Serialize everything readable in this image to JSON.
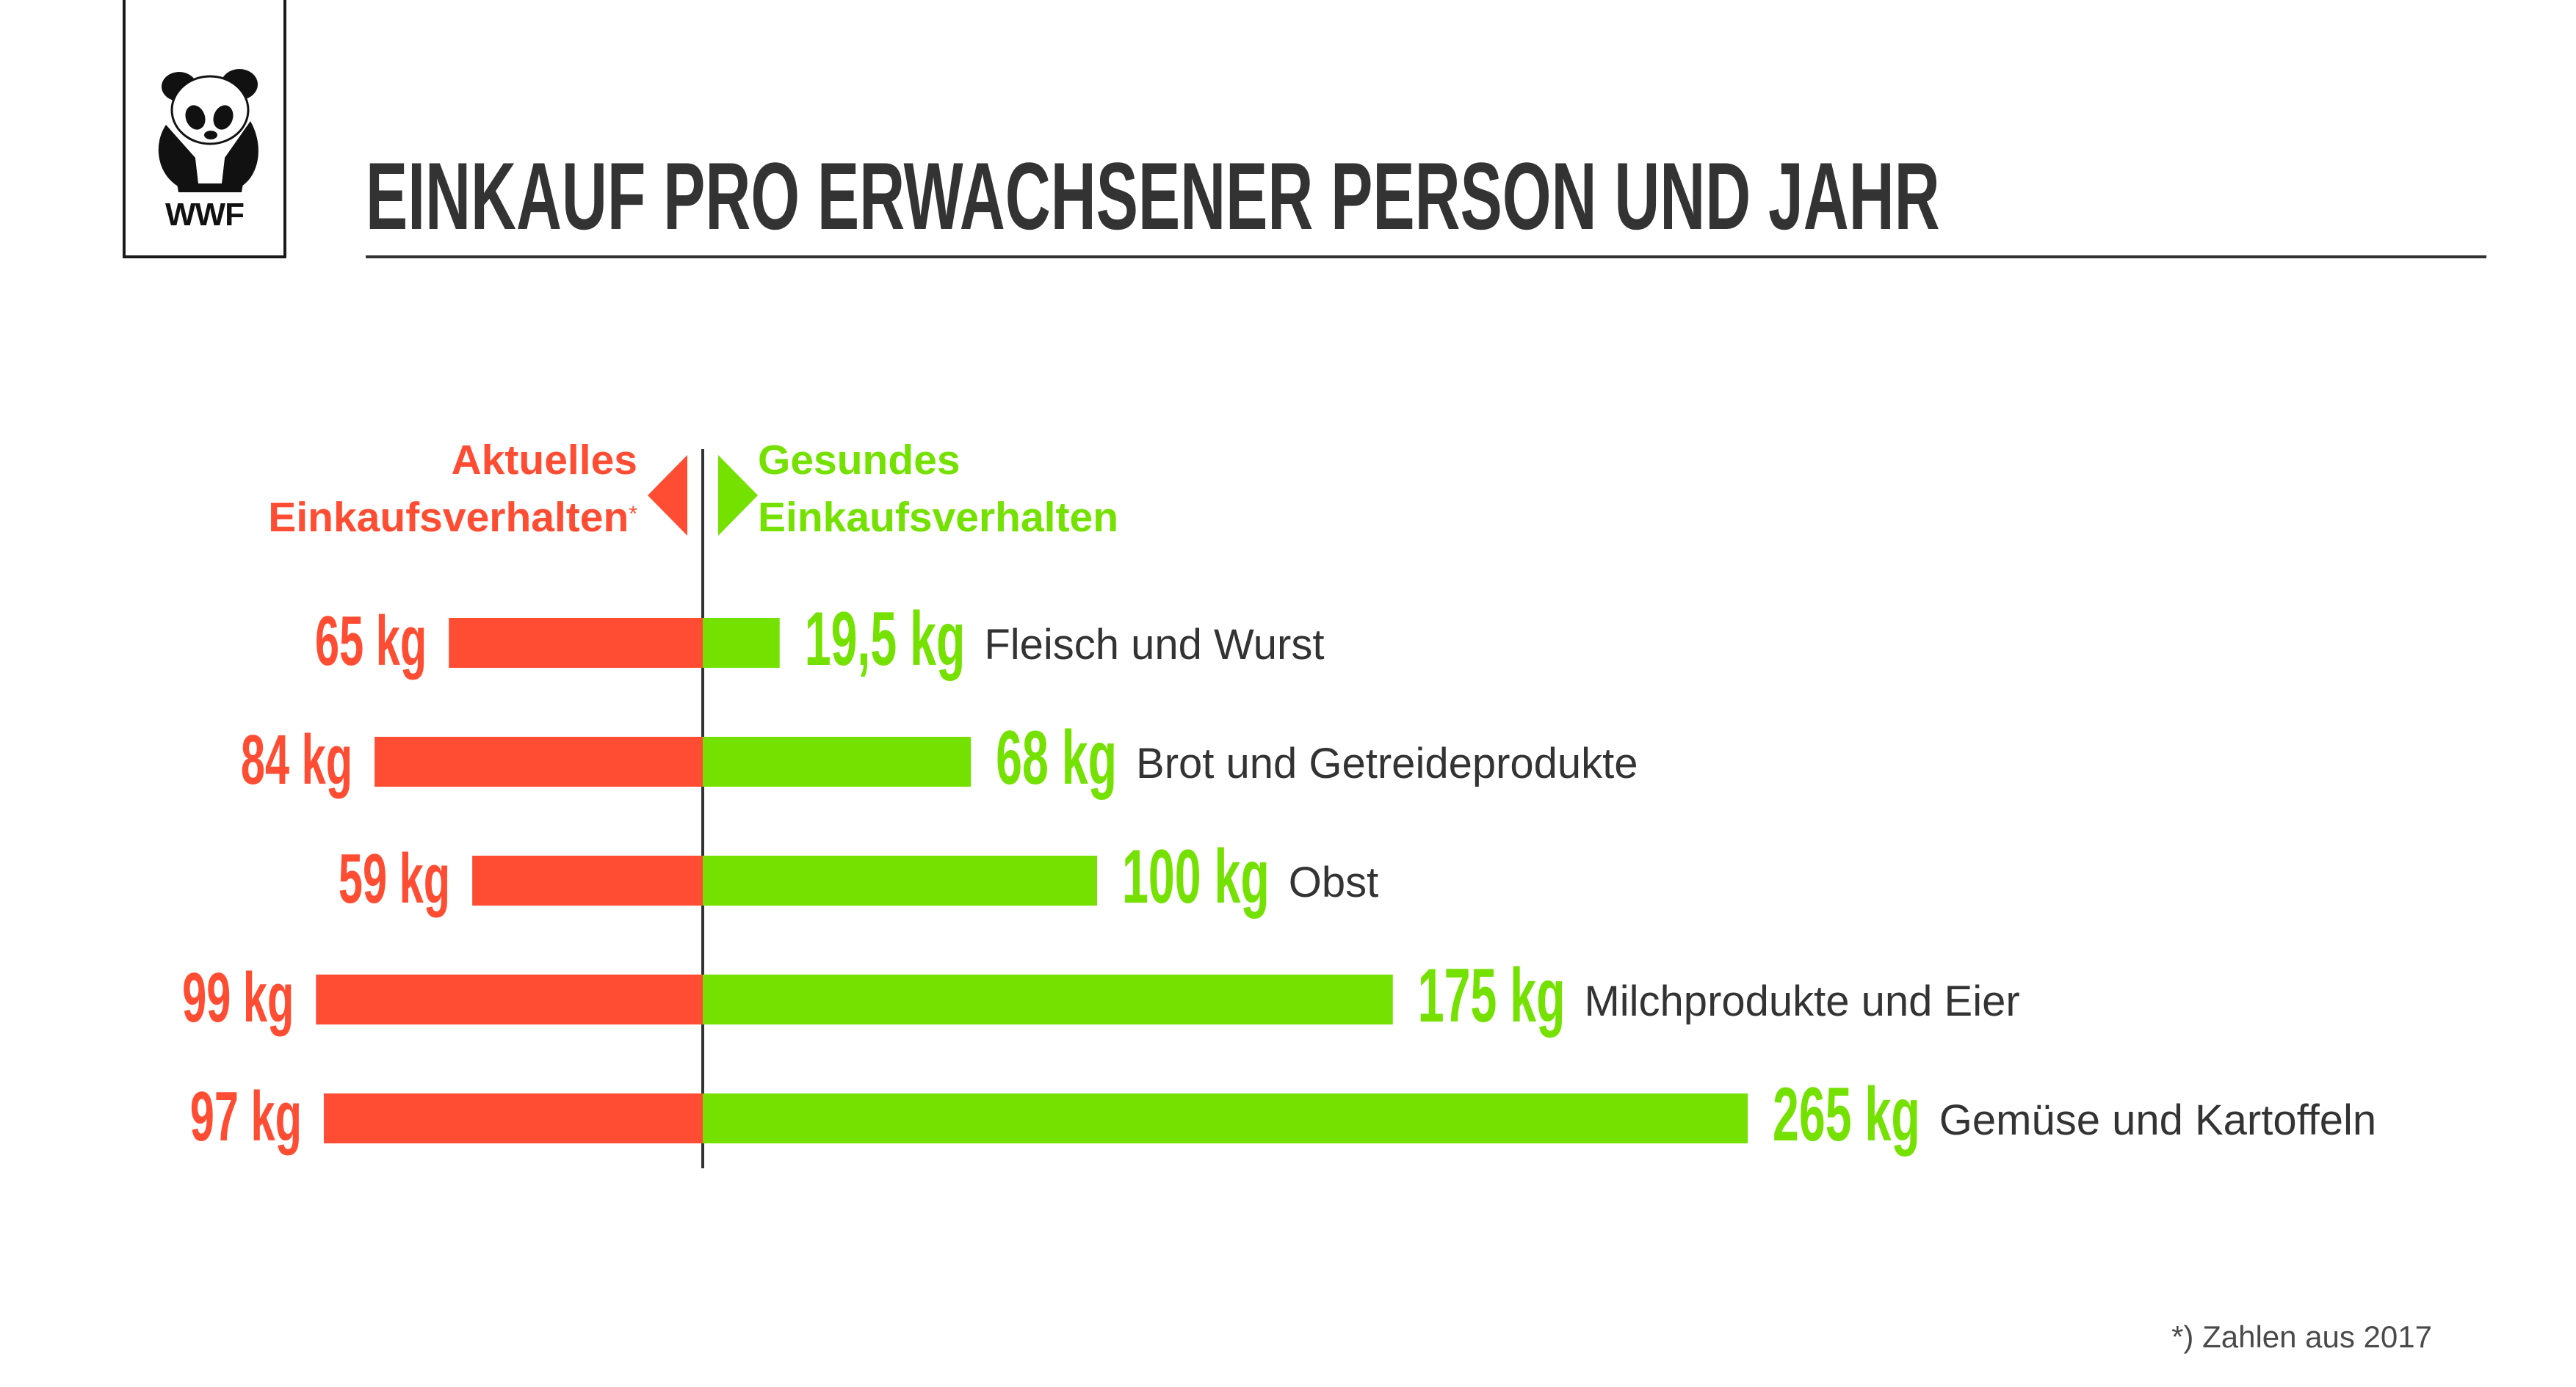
{
  "logo": {
    "text": "WWF"
  },
  "title": "EINKAUF PRO ERWACHSENER PERSON UND JAHR",
  "legend": {
    "left_line1": "Aktuelles",
    "left_line2": "Einkaufsverhalten",
    "left_marker": "*",
    "right_line1": "Gesundes",
    "right_line2": "Einkaufsverhalten"
  },
  "colors": {
    "current": "#ff4d33",
    "healthy": "#74e100",
    "text": "#333333",
    "axis": "#333333"
  },
  "chart_data": {
    "type": "bar",
    "categories": [
      "Fleisch und Wurst",
      "Brot und Getreideprodukte",
      "Obst",
      "Milchprodukte und Eier",
      "Gemüse und Kartoffeln"
    ],
    "series": [
      {
        "name": "Aktuelles Einkaufsverhalten",
        "values": [
          65,
          84,
          59,
          99,
          97
        ],
        "labels": [
          "65 kg",
          "84 kg",
          "59 kg",
          "99 kg",
          "97 kg"
        ]
      },
      {
        "name": "Gesundes Einkaufsverhalten",
        "values": [
          19.5,
          68,
          100,
          175,
          265
        ],
        "labels": [
          "19,5 kg",
          "68 kg",
          "100 kg",
          "175 kg",
          "265 kg"
        ]
      }
    ],
    "unit": "kg",
    "orientation": "diverging-horizontal"
  },
  "footnote": "*) Zahlen aus 2017"
}
